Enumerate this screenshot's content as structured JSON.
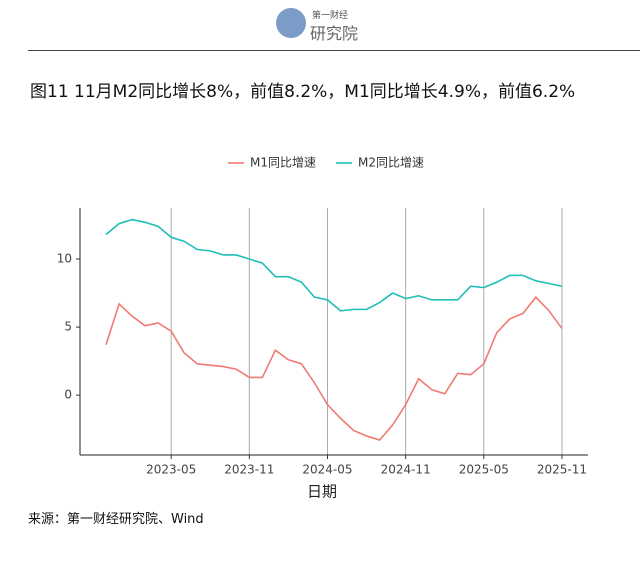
{
  "logo": {
    "top": "第一财经",
    "bottom": "研究院"
  },
  "source": "来源：第一财经研究院、Wind",
  "chart_data": {
    "type": "line",
    "title": "图11 11月M2同比增长8%，前值8.2%，M1同比增长4.9%，前值6.2%",
    "xlabel": "日期",
    "x": [
      "2022-12",
      "2023-01",
      "2023-02",
      "2023-03",
      "2023-04",
      "2023-05",
      "2023-06",
      "2023-07",
      "2023-08",
      "2023-09",
      "2023-10",
      "2023-11",
      "2023-12",
      "2024-01",
      "2024-02",
      "2024-03",
      "2024-04",
      "2024-05",
      "2024-06",
      "2024-07",
      "2024-08",
      "2024-09",
      "2024-10",
      "2024-11",
      "2024-12",
      "2025-01",
      "2025-02",
      "2025-03",
      "2025-04",
      "2025-05",
      "2025-06",
      "2025-07",
      "2025-08",
      "2025-09",
      "2025-10",
      "2025-11"
    ],
    "series": [
      {
        "name": "M1同比增速",
        "color": "#f07a73",
        "values": [
          3.7,
          6.7,
          5.8,
          5.1,
          5.3,
          4.7,
          3.1,
          2.3,
          2.2,
          2.1,
          1.9,
          1.3,
          1.3,
          3.3,
          2.6,
          2.3,
          0.9,
          -0.7,
          -1.7,
          -2.6,
          -3.0,
          -3.3,
          -2.2,
          -0.7,
          1.2,
          0.4,
          0.1,
          1.6,
          1.5,
          2.3,
          4.6,
          5.6,
          6.0,
          7.2,
          6.2,
          4.9
        ]
      },
      {
        "name": "M2同比增速",
        "color": "#1fbfb8",
        "values": [
          11.8,
          12.6,
          12.9,
          12.7,
          12.4,
          11.6,
          11.3,
          10.7,
          10.6,
          10.3,
          10.3,
          10.0,
          9.7,
          8.7,
          8.7,
          8.3,
          7.2,
          7.0,
          6.2,
          6.3,
          6.3,
          6.8,
          7.5,
          7.1,
          7.3,
          7.0,
          7.0,
          7.0,
          8.0,
          7.9,
          8.3,
          8.8,
          8.8,
          8.4,
          8.2,
          8.0
        ]
      }
    ],
    "xlim": [
      "2022-10",
      "2026-01"
    ],
    "xticks": [
      "2023-05",
      "2023-11",
      "2024-05",
      "2024-11",
      "2025-05",
      "2025-11"
    ],
    "ylim": [
      -4.4,
      13.75
    ],
    "yticks": [
      0,
      5,
      10
    ],
    "grid": "x",
    "legend": "top"
  }
}
